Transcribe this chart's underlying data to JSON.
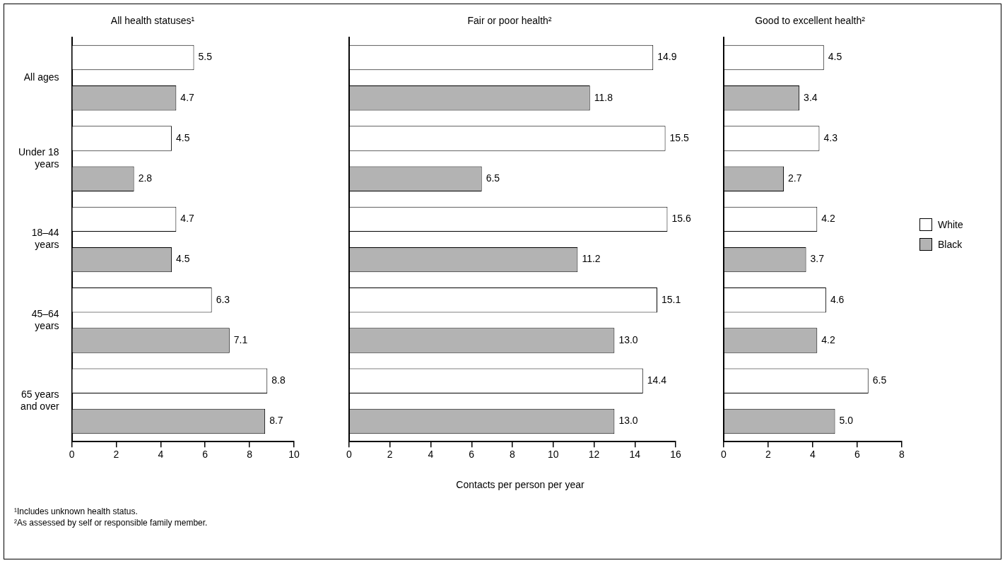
{
  "chart_data": [
    {
      "type": "bar",
      "orientation": "horizontal",
      "title": "All health statuses¹",
      "categories": [
        "All ages",
        "Under 18 years",
        "18–44 years",
        "45–64 years",
        "65 years and over"
      ],
      "series": [
        {
          "color": "#ffffff",
          "values": [
            5.5,
            4.5,
            4.7,
            6.3,
            8.8
          ],
          "value_labels": [
            "5.5",
            "4.5",
            "4.7",
            "6.3",
            "8.8"
          ]
        },
        {
          "color": "#b3b3b3",
          "values": [
            4.7,
            2.8,
            4.5,
            7.1,
            8.7
          ],
          "value_labels": [
            "4.7",
            "2.8",
            "4.5",
            "7.1",
            "8.7"
          ]
        }
      ],
      "xlim": [
        0,
        10
      ],
      "xticks": [
        0,
        2,
        4,
        6,
        8,
        10
      ],
      "annotations": [
        "¹Includes unknown health status.",
        "²As assessed by self or responsible family member."
      ]
    },
    {
      "type": "bar",
      "orientation": "horizontal",
      "title": "Fair or poor health²",
      "xlabel": "Contacts per person per year",
      "categories": [
        null,
        null,
        null,
        null,
        null
      ],
      "series": [
        {
          "color": "#ffffff",
          "values": [
            14.9,
            15.5,
            15.6,
            15.1,
            14.4
          ],
          "value_labels": [
            "14.9",
            "15.5",
            "15.6",
            "15.1",
            "14.4"
          ]
        },
        {
          "color": "#b3b3b3",
          "values": [
            11.8,
            6.5,
            11.2,
            13.0,
            13.0
          ],
          "value_labels": [
            "11.8",
            "6.5",
            "11.2",
            "13.0",
            "13.0"
          ]
        }
      ],
      "xlim": [
        0,
        16
      ],
      "xticks": [
        0,
        2,
        4,
        6,
        8,
        10,
        12,
        14,
        16
      ],
      "tick_labels": "x"
    },
    {
      "type": "bar",
      "orientation": "horizontal",
      "title": "Good to excellent health²",
      "categories": [
        null,
        null,
        null,
        null,
        null
      ],
      "series": [
        {
          "name": "White",
          "color": "#ffffff",
          "values": [
            4.5,
            4.3,
            4.2,
            4.6,
            6.5
          ],
          "value_labels": [
            "4.5",
            "4.3",
            "4.2",
            "4.6",
            "6.5"
          ]
        },
        {
          "name": "Black",
          "color": "#b3b3b3",
          "values": [
            3.4,
            2.7,
            3.7,
            4.2,
            5.0
          ],
          "value_labels": [
            "3.4",
            "2.7",
            "3.7",
            "4.2",
            "5.0"
          ]
        }
      ],
      "xlim": [
        0,
        8
      ],
      "xticks": [
        0,
        2,
        4,
        6,
        8
      ],
      "tick_labels": "x",
      "legend": "right"
    }
  ]
}
